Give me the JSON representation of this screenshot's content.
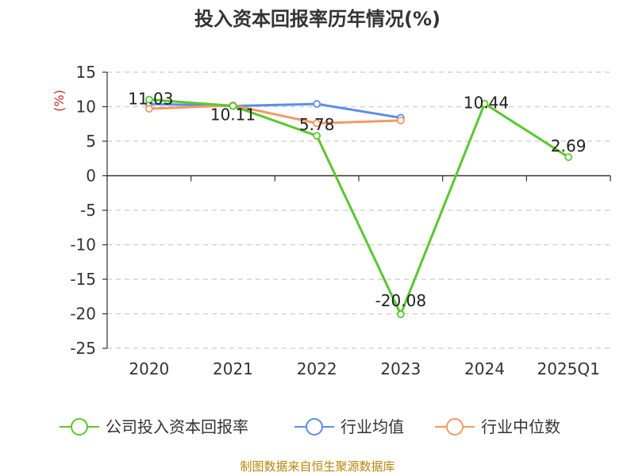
{
  "chart_data": {
    "type": "line",
    "title": "投入资本回报率历年情况(%)",
    "ylabel": "(%)",
    "categories": [
      "2020",
      "2021",
      "2022",
      "2023",
      "2024",
      "2025Q1"
    ],
    "ylim": [
      -25,
      15
    ],
    "yticks": [
      15,
      10,
      5,
      0,
      -5,
      -10,
      -15,
      -20,
      -25
    ],
    "grid": true,
    "legend_position": "bottom",
    "series": [
      {
        "name": "公司投入资本回报率",
        "color": "#5ac72d",
        "values": [
          11.03,
          10.11,
          5.78,
          -20.08,
          10.44,
          2.69
        ],
        "labels": [
          "11.03",
          "10.11",
          "5.78",
          "-20.08",
          "10.44",
          "2.69"
        ]
      },
      {
        "name": "行业均值",
        "color": "#5b8ee6",
        "values": [
          10.4,
          10.1,
          10.4,
          8.4,
          null,
          null
        ]
      },
      {
        "name": "行业中位数",
        "color": "#f59865",
        "values": [
          9.7,
          10.2,
          7.6,
          8.0,
          null,
          null
        ]
      }
    ],
    "source": "制图数据来自恒生聚源数据库"
  }
}
